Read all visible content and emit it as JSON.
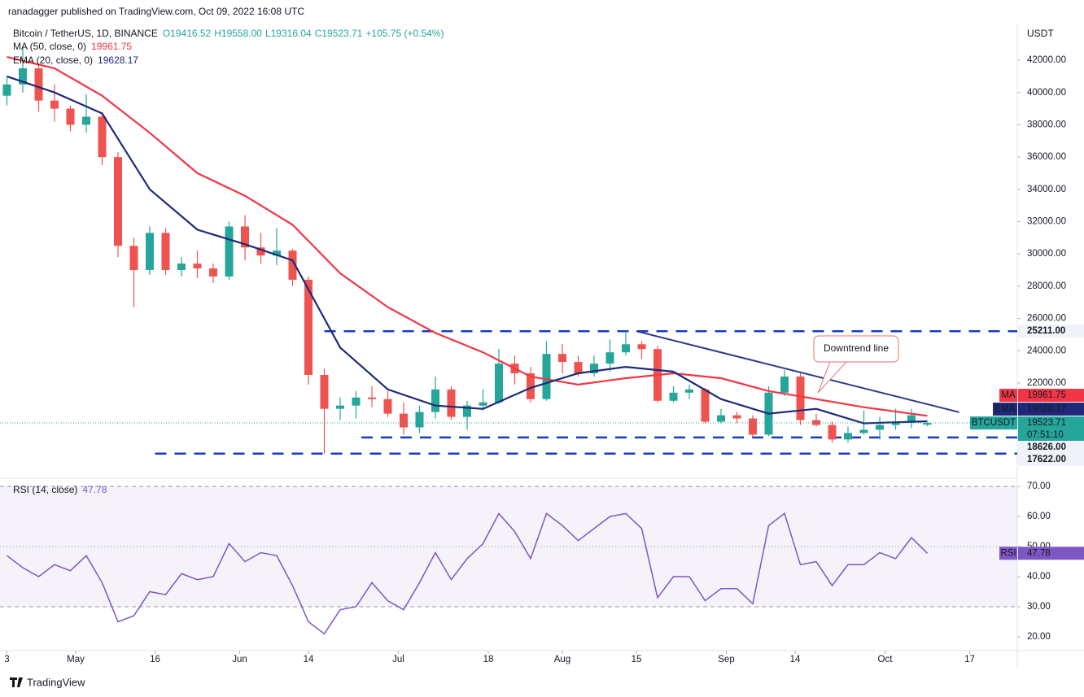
{
  "header": {
    "author": "ranadagger published on TradingView.com, Oct 09, 2022 16:08 UTC",
    "symbol": "Bitcoin / TetherUS, 1D, BINANCE",
    "ohlc": [
      "O19416.52",
      "H19558.00",
      "L19316.04",
      "C19523.71",
      "+105.75 (+0.54%)"
    ]
  },
  "footer": "TradingView",
  "chart_data": [
    {
      "type": "candlestick",
      "axis_label": "USDT",
      "x": [
        "Apr 18",
        "Apr 21",
        "Apr 24",
        "Apr 27",
        "Apr 30",
        "May 3",
        "May 6",
        "May 9",
        "May 12",
        "May 15",
        "May 18",
        "May 21",
        "May 24",
        "May 27",
        "May 30",
        "Jun 2",
        "Jun 5",
        "Jun 8",
        "Jun 11",
        "Jun 14",
        "Jun 17",
        "Jun 20",
        "Jun 23",
        "Jun 26",
        "Jun 29",
        "Jul 2",
        "Jul 5",
        "Jul 8",
        "Jul 11",
        "Jul 14",
        "Jul 17",
        "Jul 20",
        "Jul 23",
        "Jul 26",
        "Jul 29",
        "Aug 1",
        "Aug 4",
        "Aug 7",
        "Aug 10",
        "Aug 13",
        "Aug 16",
        "Aug 19",
        "Aug 22",
        "Aug 25",
        "Aug 28",
        "Aug 31",
        "Sep 3",
        "Sep 6",
        "Sep 9",
        "Sep 12",
        "Sep 15",
        "Sep 18",
        "Sep 21",
        "Sep 24",
        "Sep 27",
        "Sep 30",
        "Oct 3",
        "Oct 6",
        "Oct 9"
      ],
      "open": [
        39800,
        40500,
        41500,
        39500,
        39000,
        38000,
        38500,
        36000,
        30500,
        29000,
        31300,
        29000,
        29400,
        29100,
        28600,
        31700,
        30400,
        29900,
        30200,
        28400,
        22500,
        20400,
        20600,
        21100,
        21000,
        20100,
        19250,
        20200,
        21600,
        19900,
        20600,
        20800,
        23200,
        22600,
        21000,
        23800,
        23300,
        22600,
        23200,
        23900,
        24400,
        24100,
        20900,
        21400,
        21600,
        19600,
        20000,
        19800,
        18800,
        21400,
        22400,
        19700,
        19400,
        18500,
        18900,
        19100,
        19400,
        19600,
        19416.52
      ],
      "high": [
        41000,
        42800,
        41800,
        40500,
        39200,
        39900,
        38800,
        36300,
        31000,
        31700,
        31600,
        29800,
        30200,
        29400,
        32000,
        32400,
        31300,
        31600,
        30300,
        28600,
        22900,
        21100,
        21500,
        21800,
        21500,
        20800,
        20600,
        22400,
        21800,
        20900,
        21600,
        24100,
        23700,
        23000,
        24600,
        24400,
        23700,
        23700,
        24700,
        25211,
        24600,
        24300,
        21800,
        21900,
        21700,
        20400,
        20200,
        20000,
        21800,
        22800,
        22600,
        20100,
        19600,
        19300,
        20300,
        19900,
        20400,
        20400,
        19558
      ],
      "low": [
        39200,
        40000,
        38800,
        38200,
        37600,
        37500,
        35500,
        29800,
        26700,
        28700,
        28700,
        28600,
        28500,
        28200,
        28400,
        29600,
        29400,
        29300,
        28000,
        21900,
        17622,
        19700,
        19800,
        20500,
        19900,
        18800,
        18900,
        19800,
        19700,
        19100,
        20300,
        20700,
        21900,
        20800,
        20900,
        22600,
        22400,
        22400,
        22700,
        23700,
        23500,
        20800,
        20800,
        21000,
        19500,
        19500,
        19500,
        18600,
        18700,
        21200,
        19400,
        19300,
        18300,
        18300,
        18800,
        18500,
        19100,
        19200,
        19316.04
      ],
      "close": [
        40500,
        41500,
        39500,
        39000,
        38000,
        38500,
        36000,
        30500,
        29000,
        31300,
        29000,
        29400,
        29100,
        28600,
        31700,
        30400,
        29900,
        30200,
        28400,
        22500,
        20400,
        20600,
        21100,
        21000,
        20100,
        19250,
        20200,
        21600,
        19900,
        20600,
        20800,
        23200,
        22600,
        21000,
        23800,
        23300,
        22600,
        23200,
        23900,
        24400,
        24100,
        20900,
        21400,
        21600,
        19600,
        20000,
        19800,
        18800,
        21400,
        22400,
        19700,
        19400,
        18500,
        18900,
        19100,
        19400,
        19600,
        20000,
        19523.71
      ],
      "up_color": "#26a69a",
      "down_color": "#ef5350",
      "last": {
        "name": "BTCUSDT",
        "countdown": "07:51:10",
        "color": "#26a69a"
      },
      "ylim": [
        16250,
        44220
      ],
      "yticks": [
        {
          "value": 22000,
          "label": "22000.00"
        },
        {
          "value": 24000,
          "label": "24000.00"
        },
        {
          "value": 26000,
          "label": "26000.00"
        },
        {
          "value": 28000,
          "label": "28000.00"
        },
        {
          "value": 30000,
          "label": "30000.00"
        },
        {
          "value": 32000,
          "label": "32000.00"
        },
        {
          "value": 34000,
          "label": "34000.00"
        },
        {
          "value": 36000,
          "label": "36000.00"
        },
        {
          "value": 38000,
          "label": "38000.00"
        },
        {
          "value": 40000,
          "label": "40000.00"
        },
        {
          "value": 42000,
          "label": "42000.00"
        }
      ],
      "xticks": [
        {
          "value": "Apr 18",
          "label": "3"
        },
        {
          "value": "May 1",
          "label": "May"
        },
        {
          "value": "May 16",
          "label": "16"
        },
        {
          "value": "Jun 1",
          "label": "Jun"
        },
        {
          "value": "Jun 14",
          "label": "14"
        },
        {
          "value": "Jul 1",
          "label": "Jul"
        },
        {
          "value": "Jul 18",
          "label": "18"
        },
        {
          "value": "Aug 1",
          "label": "Aug"
        },
        {
          "value": "Aug 15",
          "label": "15"
        },
        {
          "value": "Sep 1",
          "label": "Sep"
        },
        {
          "value": "Sep 14",
          "label": "14"
        },
        {
          "value": "Oct 1",
          "label": "Oct"
        },
        {
          "value": "Oct 17",
          "label": "17"
        }
      ],
      "series": [
        {
          "name": "MA (50, close, 0)",
          "tag": "MA",
          "color": "#f23645",
          "x": [
            "Apr 18",
            "Apr 27",
            "May 6",
            "May 15",
            "May 24",
            "Jun 2",
            "Jun 11",
            "Jun 20",
            "Jun 29",
            "Jul 8",
            "Jul 17",
            "Jul 26",
            "Aug 4",
            "Aug 13",
            "Aug 22",
            "Aug 31",
            "Sep 9",
            "Sep 18",
            "Sep 27",
            "Oct 9"
          ],
          "values": [
            42200,
            41500,
            39800,
            37500,
            35000,
            33600,
            31800,
            28800,
            26700,
            25100,
            23900,
            22400,
            21900,
            22300,
            22600,
            22300,
            21500,
            21000,
            20500,
            19961.75
          ]
        },
        {
          "name": "EMA (20, close, 0)",
          "tag": "EMA",
          "color": "#1e2a78",
          "x": [
            "Apr 18",
            "Apr 27",
            "May 6",
            "May 15",
            "May 24",
            "Jun 2",
            "Jun 11",
            "Jun 20",
            "Jun 29",
            "Jul 8",
            "Jul 17",
            "Jul 26",
            "Aug 4",
            "Aug 13",
            "Aug 22",
            "Aug 31",
            "Sep 9",
            "Sep 18",
            "Sep 27",
            "Oct 9"
          ],
          "values": [
            41000,
            40000,
            38700,
            34000,
            31500,
            30600,
            29600,
            24200,
            21600,
            20600,
            20400,
            21700,
            22600,
            23000,
            22700,
            21000,
            20100,
            20400,
            19500,
            19628.17
          ]
        }
      ],
      "levels": [
        {
          "value": 25211,
          "label": "25211.00",
          "from": "Jun 17"
        },
        {
          "value": 18626,
          "label": "18626.00",
          "from": "Jun 24"
        },
        {
          "value": 17622,
          "label": "17622.00",
          "from": "May 16"
        }
      ],
      "level_color": "#1a3bbf",
      "trendline": {
        "label": "Downtrend line",
        "x": [
          "Aug 15",
          "Oct 15"
        ],
        "values": [
          25211,
          20190
        ],
        "color": "#2b3a8c"
      }
    },
    {
      "type": "line",
      "name": "RSI (14, close)",
      "tag": "RSI",
      "color": "#7e57c2",
      "x": [
        "Apr 18",
        "Apr 21",
        "Apr 24",
        "Apr 27",
        "Apr 30",
        "May 3",
        "May 6",
        "May 9",
        "May 12",
        "May 15",
        "May 18",
        "May 21",
        "May 24",
        "May 27",
        "May 30",
        "Jun 2",
        "Jun 5",
        "Jun 8",
        "Jun 11",
        "Jun 14",
        "Jun 17",
        "Jun 20",
        "Jun 23",
        "Jun 26",
        "Jun 29",
        "Jul 2",
        "Jul 5",
        "Jul 8",
        "Jul 11",
        "Jul 14",
        "Jul 17",
        "Jul 20",
        "Jul 23",
        "Jul 26",
        "Jul 29",
        "Aug 1",
        "Aug 4",
        "Aug 7",
        "Aug 10",
        "Aug 13",
        "Aug 16",
        "Aug 19",
        "Aug 22",
        "Aug 25",
        "Aug 28",
        "Aug 31",
        "Sep 3",
        "Sep 6",
        "Sep 9",
        "Sep 12",
        "Sep 15",
        "Sep 18",
        "Sep 21",
        "Sep 24",
        "Sep 27",
        "Sep 30",
        "Oct 3",
        "Oct 6",
        "Oct 9"
      ],
      "values": [
        47,
        43,
        40,
        44,
        42,
        47,
        38,
        25,
        27,
        35,
        34,
        41,
        39,
        40,
        51,
        45,
        48,
        47,
        37,
        25,
        21,
        29,
        30,
        38,
        32,
        29,
        38,
        48,
        39,
        46,
        51,
        61,
        55,
        46,
        61,
        57,
        52,
        56,
        60,
        61,
        56,
        33,
        40,
        40,
        32,
        36,
        36,
        31,
        57,
        61,
        44,
        45,
        37,
        44,
        44,
        48,
        46,
        53,
        47.78
      ],
      "ylim": [
        15.4,
        72.2
      ],
      "yticks": [
        {
          "value": 20,
          "label": "20.00"
        },
        {
          "value": 30,
          "label": "30.00"
        },
        {
          "value": 40,
          "label": "40.00"
        },
        {
          "value": 50,
          "label": "50.00"
        },
        {
          "value": 60,
          "label": "60.00"
        },
        {
          "value": 70,
          "label": "70.00"
        }
      ],
      "bands": [
        70,
        50,
        30
      ]
    }
  ]
}
